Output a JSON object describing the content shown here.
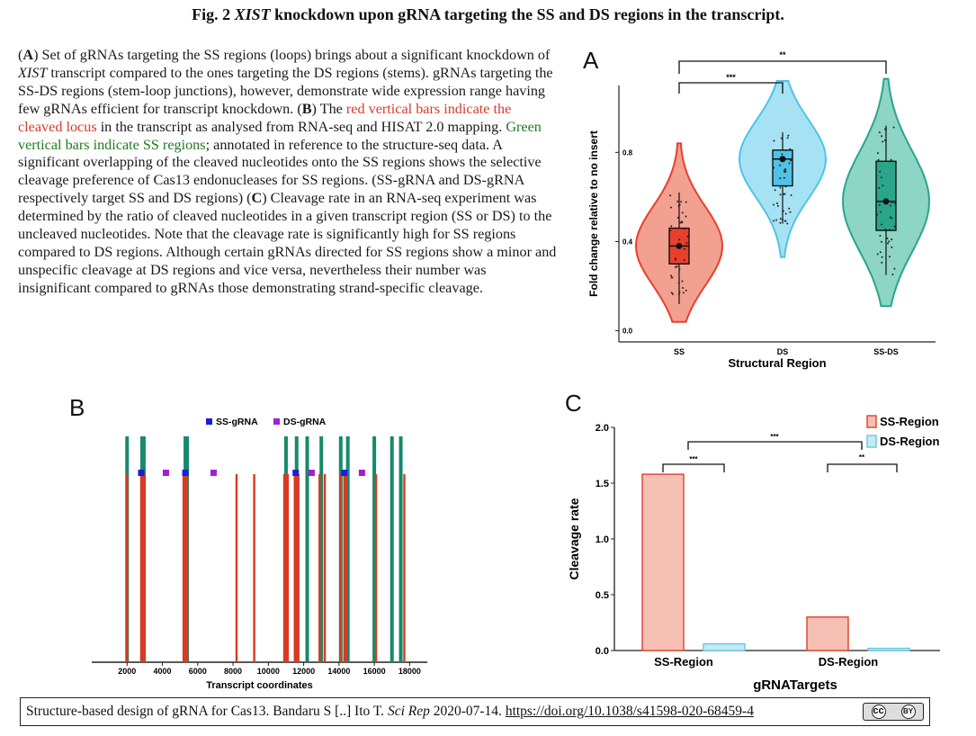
{
  "title": {
    "prefix": "Fig. 2 ",
    "gene": "XIST",
    "suffix": " knockdown upon gRNA targeting the SS and DS regions in the transcript."
  },
  "caption": {
    "a_label": "A",
    "a_text_1": ") Set of gRNAs targeting the SS regions (loops) brings about a significant knockdown of ",
    "a_gene": "XIST",
    "a_text_2": " transcript compared to the ones targeting the DS regions (stems). gRNAs targeting the SS-DS regions (stem-loop junctions), however, demonstrate wide expression range having few gRNAs efficient for transcript knockdown. (",
    "b_label": "B",
    "b_text_1": ") The ",
    "b_red": "red vertical bars indicate the cleaved locus",
    "b_text_2": " in the transcript as analysed from RNA-seq and HISAT 2.0 mapping. ",
    "b_green": "Green vertical bars indicate SS regions",
    "b_text_3": "; annotated in reference to the structure-seq data. A significant overlapping of the cleaved nucleotides onto the SS regions shows the selective cleavage preference of Cas13 endonucleases for SS regions. (SS-gRNA and DS-gRNA respectively target SS and DS regions) (",
    "c_label": "C",
    "c_text": ") Cleavage rate in an RNA-seq experiment was determined by the ratio of cleaved nucleotides in a given transcript region (SS or DS) to the uncleaved nucleotides. Note that the cleavage rate is significantly high for SS regions compared to DS regions. Although certain gRNAs directed for SS regions show a minor and unspecific cleavage at DS regions and vice versa, nevertheless their number was insignificant compared to gRNAs those demonstrating strand-specific cleavage."
  },
  "panels": {
    "a": "A",
    "b": "B",
    "c": "C"
  },
  "chart_data": [
    {
      "panel": "A",
      "type": "violin",
      "xlabel": "Structural Region",
      "ylabel": "Fold change relative to no insert",
      "categories": [
        "SS",
        "DS",
        "SS-DS"
      ],
      "yticks": [
        "0.0",
        "0.4",
        "0.8"
      ],
      "ylim": [
        -0.05,
        1.1
      ],
      "colors": {
        "SS": "#e8402e",
        "DS": "#4fc3e6",
        "SS-DS": "#2aa58a"
      },
      "fill_colors": {
        "SS": "#f2a090",
        "DS": "#a6e2f3",
        "SS-DS": "#8dd5c4"
      },
      "medians": {
        "SS": 0.38,
        "DS": 0.77,
        "SS-DS": 0.58
      },
      "boxes": {
        "SS": [
          0.3,
          0.46
        ],
        "DS": [
          0.65,
          0.81
        ],
        "SS-DS": [
          0.45,
          0.76
        ]
      },
      "whiskers": {
        "SS": [
          0.12,
          0.62
        ],
        "DS": [
          0.48,
          0.89
        ],
        "SS-DS": [
          0.25,
          0.92
        ]
      },
      "range": {
        "SS": [
          0.04,
          0.84
        ],
        "DS": [
          0.33,
          1.12
        ],
        "SS-DS": [
          0.11,
          1.13
        ]
      },
      "significance": [
        {
          "from": "SS",
          "to": "DS",
          "label": "***"
        },
        {
          "from": "SS",
          "to": "SS-DS",
          "label": "**"
        }
      ]
    },
    {
      "panel": "B",
      "type": "bar",
      "xlabel": "Transcript coordinates",
      "xticks": [
        2000,
        4000,
        6000,
        8000,
        10000,
        12000,
        14000,
        16000,
        18000
      ],
      "xlim": [
        0,
        19000
      ],
      "legend": [
        {
          "label": "SS-gRNA",
          "color": "#1a1fd6"
        },
        {
          "label": "DS-gRNA",
          "color": "#a21fd6"
        }
      ],
      "ss_regions_color": "#168a6a",
      "cleaved_color": "#d93a22",
      "ss_regions": [
        2000,
        2850,
        2950,
        5300,
        5400,
        11000,
        11600,
        12200,
        13000,
        14100,
        14500,
        16000,
        17000,
        17500
      ],
      "cleaved_sites": [
        2000,
        2800,
        2900,
        3000,
        5200,
        5300,
        5400,
        8200,
        9200,
        10900,
        11000,
        11100,
        11500,
        11600,
        11700,
        12900,
        13200,
        14100,
        14300,
        14400,
        16100,
        17700
      ],
      "ss_grna": [
        2800,
        5300,
        11550,
        14300
      ],
      "ds_grna": [
        4200,
        6900,
        12450,
        15300
      ]
    },
    {
      "panel": "C",
      "type": "bar",
      "xlabel": "gRNATargets",
      "ylabel": "Cleavage rate",
      "categories": [
        "SS-Region",
        "DS-Region"
      ],
      "yticks": [
        "0.0",
        "0.5",
        "1.0",
        "1.5",
        "2.0"
      ],
      "ylim": [
        0,
        2.0
      ],
      "series": [
        {
          "name": "SS-Region",
          "values": [
            1.58,
            0.3
          ],
          "fill": "#f5bfb4",
          "stroke": "#e0402a"
        },
        {
          "name": "DS-Region",
          "values": [
            0.06,
            0.02
          ],
          "fill": "#c2ebf3",
          "stroke": "#6ac8df"
        }
      ],
      "significance": [
        {
          "label": "***",
          "scope": "within SS-Region"
        },
        {
          "label": "**",
          "scope": "within DS-Region"
        },
        {
          "label": "***",
          "scope": "between groups"
        }
      ]
    }
  ],
  "credit": {
    "text": "Structure-based design of gRNA for Cas13. Bandaru S [..] Ito T. ",
    "journal": "Sci Rep",
    "date": " 2020-07-14. ",
    "link": "https://doi.org/10.1038/s41598-020-68459-4",
    "badge_cc": "cc",
    "badge_by": "BY"
  }
}
